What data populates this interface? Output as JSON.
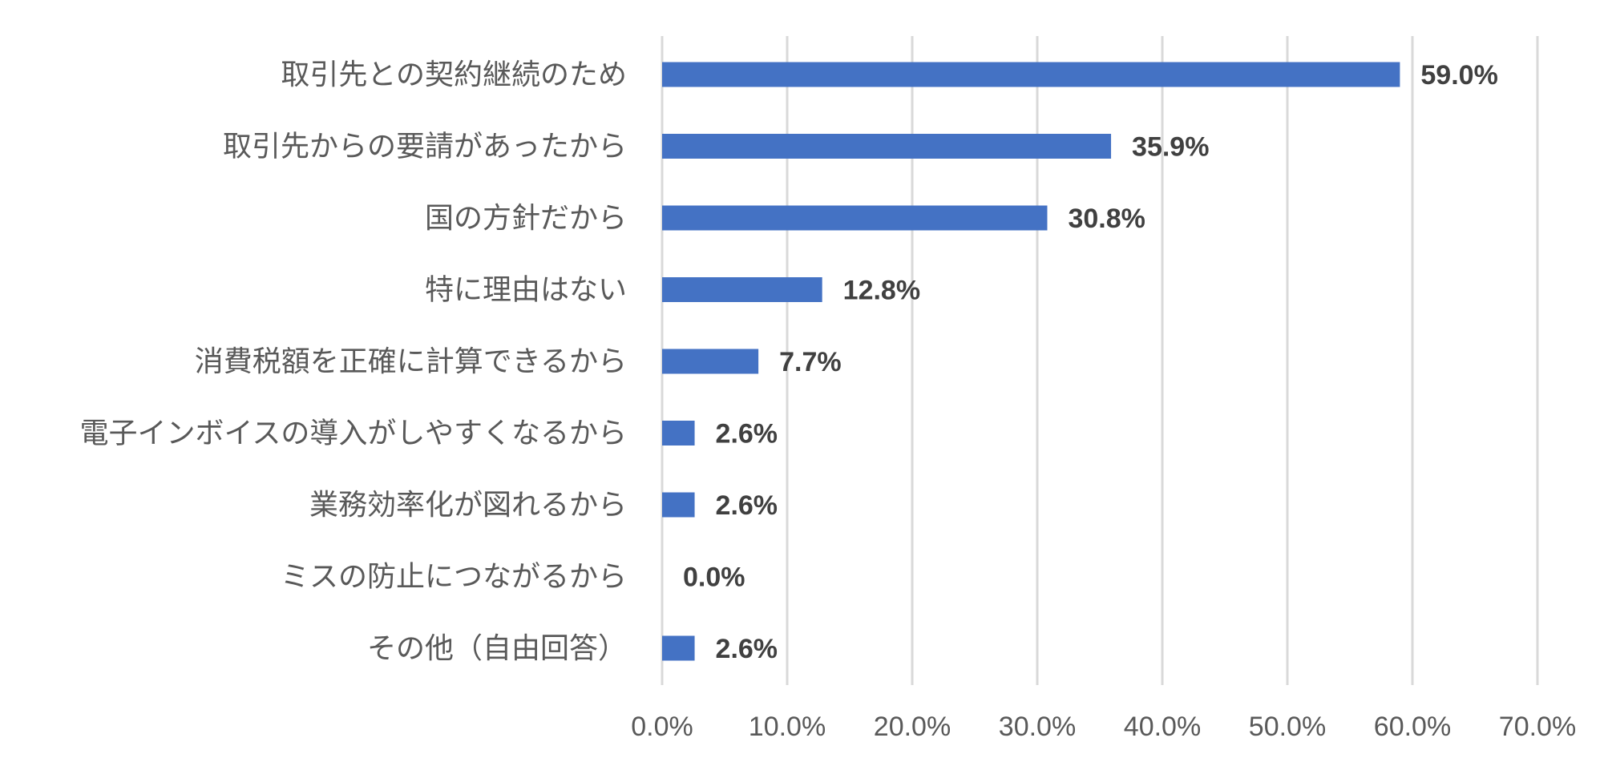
{
  "chart_data": {
    "type": "bar",
    "orientation": "horizontal",
    "categories": [
      "取引先との契約継続のため",
      "取引先からの要請があったから",
      "国の方針だから",
      "特に理由はない",
      "消費税額を正確に計算できるから",
      "電子インボイスの導入がしやすくなるから",
      "業務効率化が図れるから",
      "ミスの防止につながるから",
      "その他（自由回答）"
    ],
    "values": [
      59.0,
      35.9,
      30.8,
      12.8,
      7.7,
      2.6,
      2.6,
      0.0,
      2.6
    ],
    "data_labels": [
      "59.0%",
      "35.9%",
      "30.8%",
      "12.8%",
      "7.7%",
      "2.6%",
      "2.6%",
      "0.0%",
      "2.6%"
    ],
    "xlim": [
      0,
      70
    ],
    "x_ticks": [
      0,
      10,
      20,
      30,
      40,
      50,
      60,
      70
    ],
    "x_tick_labels": [
      "0.0%",
      "10.0%",
      "20.0%",
      "30.0%",
      "40.0%",
      "50.0%",
      "60.0%",
      "70.0%"
    ],
    "grid": true,
    "legend": false,
    "title": "",
    "xlabel": "",
    "ylabel": "",
    "colors": {
      "bar": "#4472c4",
      "grid": "#d9d9d9",
      "label_text": "#595959",
      "data_label_text": "#404040"
    }
  }
}
